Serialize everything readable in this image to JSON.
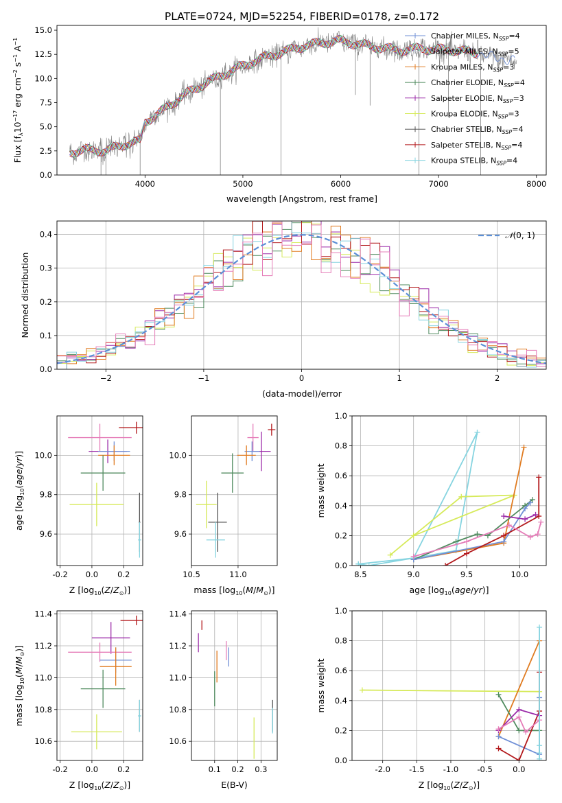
{
  "figure_title": "PLATE=0724, MJD=52254, FIBERID=0178, z=0.172",
  "colors": {
    "Chabrier MILES": "#6f8fd6",
    "Salpeter MILES": "#c8ccd6",
    "Kroupa MILES": "#e07b20",
    "Chabrier ELODIE": "#4f8a5e",
    "Salpeter ELODIE": "#9b2aa8",
    "Kroupa ELODIE": "#d6ea5a",
    "Chabrier STELIB": "#555555",
    "Salpeter STELIB": "#b3191c",
    "Kroupa STELIB": "#86d4e0",
    "pink": "#e57cb8",
    "gauss": "#5b8fd6",
    "spectrum": "#808080"
  },
  "chart_data": [
    {
      "type": "line",
      "title": "PLATE=0724, MJD=52254, FIBERID=0178, z=0.172",
      "xlabel": "wavelength [Angstrom, rest frame]",
      "ylabel": "Flux [fλ10⁻¹⁷ erg cm⁻² s⁻¹ A⁻¹]",
      "xlim": [
        3100,
        8100
      ],
      "ylim": [
        0,
        15.5
      ],
      "xticks": [
        4000,
        5000,
        6000,
        7000,
        8000
      ],
      "yticks": [
        0.0,
        2.5,
        5.0,
        7.5,
        10.0,
        12.5,
        15.0
      ],
      "legend": [
        "Chabrier MILES, N_SSP=4",
        "Salpeter MILES, N_SSP=5",
        "Kroupa MILES, N_SSP=3",
        "Chabrier ELODIE, N_SSP=4",
        "Salpeter ELODIE, N_SSP=3",
        "Kroupa ELODIE, N_SSP=3",
        "Chabrier STELIB, N_SSP=4",
        "Salpeter STELIB, N_SSP=4",
        "Kroupa STELIB, N_SSP=4"
      ],
      "legend_placement": "right",
      "continuum": {
        "x": [
          3200,
          3400,
          3600,
          3800,
          3950,
          4000,
          4200,
          4400,
          4600,
          4800,
          5000,
          5200,
          5400,
          5600,
          5800,
          6000,
          6200,
          6400,
          6600,
          6800,
          7000,
          7200,
          7400,
          7600,
          7800
        ],
        "y": [
          2.3,
          2.6,
          2.5,
          3.2,
          3.5,
          5.5,
          6.8,
          8.3,
          9.4,
          10.4,
          11.3,
          12.1,
          12.7,
          13.3,
          13.7,
          13.9,
          13.5,
          13.2,
          12.9,
          13.1,
          13.0,
          12.9,
          12.6,
          12.1,
          11.8
        ]
      },
      "spikes": [
        [
          3550,
          0.0
        ],
        [
          3600,
          0.0
        ],
        [
          3950,
          0.0
        ],
        [
          4770,
          0.0
        ],
        [
          5390,
          0.0
        ],
        [
          6150,
          8.3
        ],
        [
          6300,
          7.2
        ],
        [
          6800,
          0.0
        ],
        [
          7100,
          6.0
        ],
        [
          7430,
          0.0
        ]
      ],
      "grid": false
    },
    {
      "type": "histogram",
      "xlabel": "(data-model)/error",
      "ylabel": "Normed distribution",
      "xlim": [
        -2.5,
        2.5
      ],
      "ylim": [
        0,
        0.44
      ],
      "xticks": [
        -2,
        -1,
        0,
        1,
        2
      ],
      "yticks": [
        0.0,
        0.1,
        0.2,
        0.3,
        0.4
      ],
      "bin_width": 0.1,
      "legend": [
        "N(0,1)"
      ],
      "legend_placement": "top-right",
      "grid": true
    },
    {
      "type": "errorbar",
      "xlabel": "Z [log10(Z/Z☉)]",
      "ylabel": "age  [log10(age/yr)]",
      "xlim": [
        -0.22,
        0.32
      ],
      "ylim": [
        9.44,
        10.2
      ],
      "xticks": [
        -0.2,
        0.0,
        0.2
      ],
      "yticks": [
        9.6,
        9.8,
        10.0
      ],
      "grid": true,
      "points": [
        {
          "model": "Salpeter STELIB",
          "x": 0.28,
          "xerr": 0.11,
          "y": 10.14,
          "yerr": 0.03
        },
        {
          "model": "pink",
          "x": 0.05,
          "xerr": 0.2,
          "y": 10.09,
          "yerr": 0.07
        },
        {
          "model": "Salpeter ELODIE",
          "x": 0.1,
          "xerr": 0.12,
          "y": 10.02,
          "yerr": 0.06
        },
        {
          "model": "Chabrier MILES",
          "x": 0.14,
          "xerr": 0.1,
          "y": 10.02,
          "yerr": 0.05
        },
        {
          "model": "Kroupa MILES",
          "x": 0.14,
          "xerr": 0.1,
          "y": 10.0,
          "yerr": 0.05
        },
        {
          "model": "Chabrier ELODIE",
          "x": 0.07,
          "xerr": 0.14,
          "y": 9.91,
          "yerr": 0.09
        },
        {
          "model": "Kroupa ELODIE",
          "x": 0.03,
          "xerr": 0.17,
          "y": 9.75,
          "yerr": 0.11
        },
        {
          "model": "Chabrier STELIB",
          "x": 0.3,
          "xerr": 0.005,
          "y": 9.66,
          "yerr": 0.15
        },
        {
          "model": "Kroupa STELIB",
          "x": 0.3,
          "xerr": 0.01,
          "y": 9.57,
          "yerr": 0.09
        }
      ]
    },
    {
      "type": "errorbar",
      "xlabel": "mass [log10(M/M☉)]",
      "xlim": [
        10.5,
        11.42
      ],
      "ylim": [
        9.44,
        10.2
      ],
      "xticks": [
        10.5,
        11.0
      ],
      "yticks": [
        9.6,
        9.8,
        10.0
      ],
      "grid": true,
      "points": [
        {
          "model": "Salpeter STELIB",
          "x": 11.36,
          "xerr": 0.04,
          "y": 10.13,
          "yerr": 0.03
        },
        {
          "model": "pink",
          "x": 11.16,
          "xerr": 0.06,
          "y": 10.09,
          "yerr": 0.07
        },
        {
          "model": "Salpeter ELODIE",
          "x": 11.25,
          "xerr": 0.1,
          "y": 10.02,
          "yerr": 0.1
        },
        {
          "model": "Chabrier MILES",
          "x": 11.15,
          "xerr": 0.08,
          "y": 10.02,
          "yerr": 0.05
        },
        {
          "model": "Kroupa MILES",
          "x": 11.09,
          "xerr": 0.1,
          "y": 10.0,
          "yerr": 0.05
        },
        {
          "model": "Chabrier ELODIE",
          "x": 10.94,
          "xerr": 0.12,
          "y": 9.91,
          "yerr": 0.1
        },
        {
          "model": "Kroupa ELODIE",
          "x": 10.66,
          "xerr": 0.11,
          "y": 9.75,
          "yerr": 0.12
        },
        {
          "model": "Chabrier STELIB",
          "x": 10.78,
          "xerr": 0.1,
          "y": 9.66,
          "yerr": 0.15
        },
        {
          "model": "Kroupa STELIB",
          "x": 10.76,
          "xerr": 0.1,
          "y": 9.57,
          "yerr": 0.09
        }
      ]
    },
    {
      "type": "line",
      "xlabel": "age  [log10(age/yr)]",
      "ylabel": "mass weight",
      "xlim": [
        8.42,
        10.25
      ],
      "ylim": [
        0,
        1.0
      ],
      "xticks": [
        8.5,
        9.0,
        9.5,
        10.0
      ],
      "yticks": [
        0.0,
        0.2,
        0.4,
        0.6,
        0.8,
        1.0
      ],
      "grid": true,
      "series": [
        {
          "model": "Kroupa STELIB",
          "x": [
            8.48,
            8.58,
            9.0,
            9.4,
            9.6,
            9.0,
            8.48
          ],
          "y": [
            0.01,
            0.0,
            0.05,
            0.1,
            0.89,
            0.05,
            0.01
          ]
        },
        {
          "model": "Kroupa ELODIE",
          "x": [
            8.78,
            9.0,
            9.45,
            9.95,
            9.0
          ],
          "y": [
            0.07,
            0.2,
            0.46,
            0.47,
            0.2
          ]
        },
        {
          "model": "Kroupa MILES",
          "x": [
            9.0,
            9.85,
            10.04
          ],
          "y": [
            0.04,
            0.15,
            0.79
          ]
        },
        {
          "model": "Chabrier ELODIE",
          "x": [
            9.0,
            9.4,
            9.6,
            9.7,
            10.05,
            10.12
          ],
          "y": [
            0.04,
            0.16,
            0.21,
            0.2,
            0.4,
            0.44
          ]
        },
        {
          "model": "Chabrier MILES",
          "x": [
            9.0,
            9.85,
            10.05,
            10.1
          ],
          "y": [
            0.04,
            0.16,
            0.38,
            0.42
          ]
        },
        {
          "model": "Salpeter STELIB",
          "x": [
            9.3,
            9.5,
            9.85,
            10.18,
            10.18
          ],
          "y": [
            0.0,
            0.08,
            0.2,
            0.33,
            0.59
          ]
        },
        {
          "model": "Salpeter ELODIE",
          "x": [
            9.85,
            10.05,
            10.15
          ],
          "y": [
            0.33,
            0.31,
            0.34
          ]
        },
        {
          "model": "pink",
          "x": [
            9.0,
            9.5,
            9.9,
            10.1,
            10.17,
            10.2
          ],
          "y": [
            0.06,
            0.16,
            0.27,
            0.19,
            0.21,
            0.29
          ]
        }
      ]
    },
    {
      "type": "errorbar",
      "xlabel": "Z [log10(Z/Z☉)]",
      "ylabel": "mass [log10(M/M☉)]",
      "xlim": [
        -0.22,
        0.32
      ],
      "ylim": [
        10.48,
        11.42
      ],
      "xticks": [
        -0.2,
        0.0,
        0.2
      ],
      "yticks": [
        10.6,
        10.8,
        11.0,
        11.2,
        11.4
      ],
      "grid": true,
      "points": [
        {
          "model": "Salpeter STELIB",
          "x": 0.28,
          "xerr": 0.1,
          "y": 11.36,
          "yerr": 0.03
        },
        {
          "model": "Salpeter ELODIE",
          "x": 0.12,
          "xerr": 0.12,
          "y": 11.25,
          "yerr": 0.1
        },
        {
          "model": "pink",
          "x": 0.05,
          "xerr": 0.2,
          "y": 11.16,
          "yerr": 0.06
        },
        {
          "model": "Chabrier MILES",
          "x": 0.15,
          "xerr": 0.1,
          "y": 11.11,
          "yerr": 0.08
        },
        {
          "model": "Kroupa MILES",
          "x": 0.15,
          "xerr": 0.1,
          "y": 11.07,
          "yerr": 0.12
        },
        {
          "model": "Chabrier ELODIE",
          "x": 0.07,
          "xerr": 0.14,
          "y": 10.93,
          "yerr": 0.12
        },
        {
          "model": "Kroupa ELODIE",
          "x": 0.03,
          "xerr": 0.16,
          "y": 10.66,
          "yerr": 0.11
        },
        {
          "model": "Chabrier STELIB",
          "x": 0.3,
          "xerr": 0.005,
          "y": 10.76,
          "yerr": 0.1
        },
        {
          "model": "Kroupa STELIB",
          "x": 0.3,
          "xerr": 0.01,
          "y": 10.76,
          "yerr": 0.1
        }
      ]
    },
    {
      "type": "errorbar",
      "xlabel": "E(B-V)",
      "xlim": [
        0.0,
        0.37
      ],
      "ylim": [
        10.48,
        11.42
      ],
      "xticks": [
        0.1,
        0.2,
        0.3
      ],
      "yticks": [
        10.6,
        10.8,
        11.0,
        11.2,
        11.4
      ],
      "grid": true,
      "points": [
        {
          "model": "Salpeter STELIB",
          "x": 0.045,
          "xerr": 0.0,
          "y": 11.33,
          "yerr": 0.03
        },
        {
          "model": "Salpeter ELODIE",
          "x": 0.03,
          "xerr": 0.0,
          "y": 11.22,
          "yerr": 0.06
        },
        {
          "model": "pink",
          "x": 0.15,
          "xerr": 0.0,
          "y": 11.17,
          "yerr": 0.06
        },
        {
          "model": "Chabrier MILES",
          "x": 0.16,
          "xerr": 0.0,
          "y": 11.13,
          "yerr": 0.06
        },
        {
          "model": "Kroupa MILES",
          "x": 0.11,
          "xerr": 0.0,
          "y": 11.07,
          "yerr": 0.1
        },
        {
          "model": "Chabrier ELODIE",
          "x": 0.1,
          "xerr": 0.0,
          "y": 10.93,
          "yerr": 0.11
        },
        {
          "model": "Kroupa ELODIE",
          "x": 0.27,
          "xerr": 0.0,
          "y": 10.62,
          "yerr": 0.13
        },
        {
          "model": "Chabrier STELIB",
          "x": 0.35,
          "xerr": 0.0,
          "y": 10.76,
          "yerr": 0.1
        },
        {
          "model": "Kroupa STELIB",
          "x": 0.35,
          "xerr": 0.0,
          "y": 10.73,
          "yerr": 0.08
        }
      ]
    },
    {
      "type": "line",
      "xlabel": "Z [log10(Z/Z☉)]",
      "ylabel": "mass weight",
      "xlim": [
        -2.45,
        0.4
      ],
      "ylim": [
        0,
        1.0
      ],
      "xticks": [
        -2.0,
        -1.5,
        -1.0,
        -0.5,
        0.0
      ],
      "yticks": [
        0.0,
        0.2,
        0.4,
        0.6,
        0.8,
        1.0
      ],
      "grid": true,
      "series": [
        {
          "model": "Kroupa ELODIE",
          "x": [
            -2.3,
            0.3,
            0.3
          ],
          "y": [
            0.47,
            0.46,
            0.2
          ]
        },
        {
          "model": "Kroupa MILES",
          "x": [
            -0.3,
            0.3
          ],
          "y": [
            0.16,
            0.8
          ]
        },
        {
          "model": "Chabrier ELODIE",
          "x": [
            -0.3,
            0.0,
            0.3
          ],
          "y": [
            0.44,
            0.2,
            0.2
          ]
        },
        {
          "model": "Chabrier MILES",
          "x": [
            -0.3,
            0.3,
            0.3
          ],
          "y": [
            0.16,
            0.04,
            0.42
          ]
        },
        {
          "model": "Salpeter STELIB",
          "x": [
            -0.3,
            0.0,
            0.3,
            0.3
          ],
          "y": [
            0.08,
            0.0,
            0.33,
            0.59
          ]
        },
        {
          "model": "Salpeter ELODIE",
          "x": [
            -0.3,
            0.0,
            0.3
          ],
          "y": [
            0.2,
            0.34,
            0.3
          ]
        },
        {
          "model": "pink",
          "x": [
            -0.3,
            0.0,
            0.1,
            0.3
          ],
          "y": [
            0.21,
            0.29,
            0.19,
            0.27
          ]
        },
        {
          "model": "Kroupa STELIB",
          "x": [
            0.3,
            0.3,
            0.3,
            0.3
          ],
          "y": [
            0.01,
            0.05,
            0.1,
            0.89
          ]
        }
      ]
    }
  ]
}
